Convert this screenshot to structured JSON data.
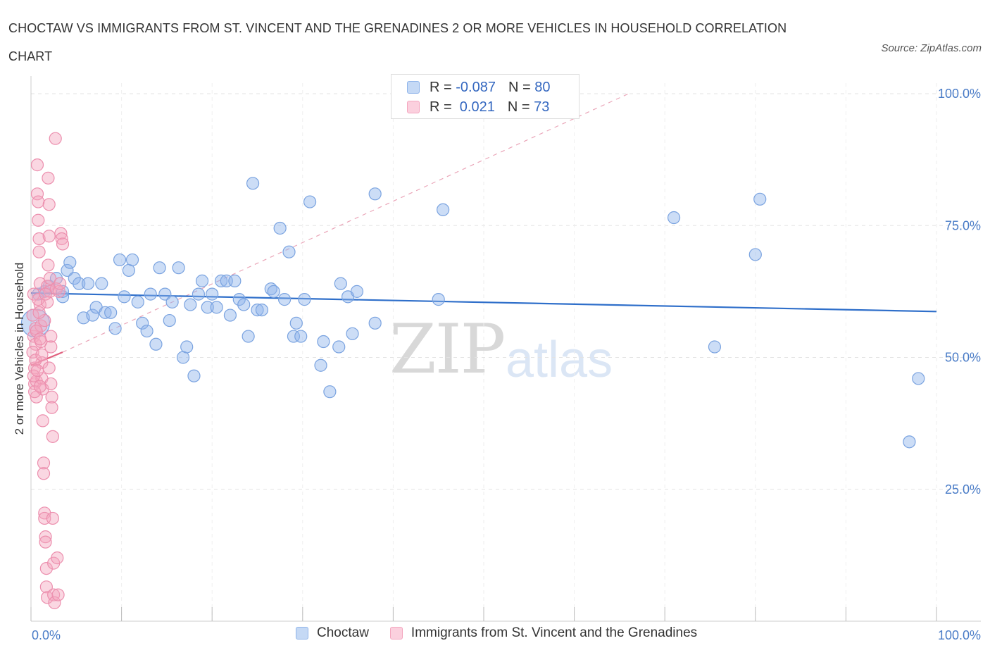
{
  "chart_data": {
    "type": "scatter",
    "title": "CHOCTAW VS IMMIGRANTS FROM ST. VINCENT AND THE GRENADINES 2 OR MORE VEHICLES IN HOUSEHOLD CORRELATION CHART",
    "source": "Source: ZipAtlas.com",
    "ylabel": "2 or more Vehicles in Household",
    "xlim": [
      0,
      100
    ],
    "ylim": [
      0,
      100
    ],
    "x_tick_labels": [
      "0.0%",
      "100.0%"
    ],
    "y_tick_labels": [
      "100.0%",
      "75.0%",
      "50.0%",
      "25.0%"
    ],
    "y_tick_values": [
      100,
      75,
      50,
      25
    ],
    "watermark": [
      "ZIP",
      "atlas"
    ],
    "legend": {
      "rows": [
        {
          "r_label": "R = ",
          "r_value": "-0.087",
          "n_label": "N = ",
          "n_value": "80"
        },
        {
          "r_label": "R = ",
          "r_value": " 0.021",
          "n_label": "N = ",
          "n_value": "73"
        }
      ]
    },
    "series": [
      {
        "name": "Choctaw",
        "color": "#8fb4ea",
        "trend": {
          "x0": 0,
          "y0": 62.2,
          "x1": 100,
          "y1": 58.7,
          "color": "#2f6fca"
        },
        "points": [
          [
            0.5,
            56.5
          ],
          [
            0.8,
            62
          ],
          [
            1.5,
            62.5
          ],
          [
            2,
            63.5
          ],
          [
            2.8,
            65
          ],
          [
            3.5,
            61.5
          ],
          [
            3.5,
            62.5
          ],
          [
            4,
            66.5
          ],
          [
            4.3,
            68
          ],
          [
            4.8,
            65
          ],
          [
            5.3,
            64
          ],
          [
            5.8,
            57.5
          ],
          [
            6.3,
            64
          ],
          [
            6.8,
            58
          ],
          [
            7.2,
            59.5
          ],
          [
            7.8,
            64
          ],
          [
            8.2,
            58.5
          ],
          [
            8.8,
            58.5
          ],
          [
            9.3,
            55.5
          ],
          [
            9.8,
            68.5
          ],
          [
            10.3,
            61.5
          ],
          [
            10.8,
            66.5
          ],
          [
            11.2,
            68.5
          ],
          [
            11.8,
            60.5
          ],
          [
            12.3,
            56.5
          ],
          [
            12.8,
            55
          ],
          [
            13.2,
            62
          ],
          [
            13.8,
            52.5
          ],
          [
            14.2,
            67
          ],
          [
            14.8,
            62
          ],
          [
            15.3,
            57
          ],
          [
            15.6,
            60.5
          ],
          [
            16.3,
            67
          ],
          [
            16.8,
            50
          ],
          [
            17.2,
            52
          ],
          [
            17.6,
            60
          ],
          [
            18,
            46.5
          ],
          [
            18.5,
            62
          ],
          [
            18.9,
            64.5
          ],
          [
            19.5,
            59.5
          ],
          [
            20,
            62
          ],
          [
            20.5,
            59.5
          ],
          [
            21,
            64.5
          ],
          [
            21.6,
            64.5
          ],
          [
            22,
            58
          ],
          [
            22.5,
            64.5
          ],
          [
            23,
            61
          ],
          [
            23.5,
            60
          ],
          [
            24,
            54
          ],
          [
            24.5,
            83
          ],
          [
            25,
            59
          ],
          [
            25.5,
            59
          ],
          [
            26.5,
            63
          ],
          [
            26.8,
            62.5
          ],
          [
            27.5,
            74.5
          ],
          [
            28,
            61
          ],
          [
            28.5,
            70
          ],
          [
            29,
            54
          ],
          [
            29.3,
            56.5
          ],
          [
            29.8,
            54
          ],
          [
            30.2,
            61
          ],
          [
            30.8,
            79.5
          ],
          [
            32,
            48.5
          ],
          [
            32.3,
            53
          ],
          [
            33,
            43.5
          ],
          [
            34,
            52
          ],
          [
            34.2,
            64
          ],
          [
            35,
            61.5
          ],
          [
            35.5,
            54.5
          ],
          [
            36,
            62.5
          ],
          [
            38,
            56.5
          ],
          [
            38,
            81
          ],
          [
            45,
            61
          ],
          [
            45.5,
            78
          ],
          [
            71,
            76.5
          ],
          [
            75.5,
            52
          ],
          [
            80,
            69.5
          ],
          [
            80.5,
            80
          ],
          [
            97,
            34
          ],
          [
            98,
            46
          ]
        ]
      },
      {
        "name": "Immigrants from St. Vincent and the Grenadines",
        "color": "#f4a6bf",
        "trend": {
          "x0": 0,
          "y0": 48.5,
          "x1": 3.5,
          "y1": 51,
          "color": "#e0607e",
          "dashed_to": {
            "x": 66,
            "y": 100
          }
        },
        "points": [
          [
            0.3,
            62
          ],
          [
            0.3,
            54
          ],
          [
            0.4,
            48
          ],
          [
            0.4,
            45
          ],
          [
            0.5,
            55.5
          ],
          [
            0.5,
            52.5
          ],
          [
            0.6,
            45.5
          ],
          [
            0.6,
            42.5
          ],
          [
            0.7,
            86.5
          ],
          [
            0.7,
            81
          ],
          [
            0.8,
            79.5
          ],
          [
            0.8,
            76
          ],
          [
            0.9,
            72.5
          ],
          [
            0.9,
            70
          ],
          [
            1,
            64
          ],
          [
            1,
            60
          ],
          [
            1.1,
            56
          ],
          [
            1.1,
            53
          ],
          [
            1.2,
            49
          ],
          [
            1.2,
            46
          ],
          [
            1.3,
            44
          ],
          [
            1.3,
            38
          ],
          [
            1.4,
            30
          ],
          [
            1.4,
            28
          ],
          [
            1.5,
            20.5
          ],
          [
            1.5,
            19.5
          ],
          [
            1.6,
            16
          ],
          [
            1.6,
            15
          ],
          [
            1.7,
            10
          ],
          [
            1.7,
            6.5
          ],
          [
            1.8,
            4.5
          ],
          [
            1.8,
            63.5
          ],
          [
            1.9,
            67.5
          ],
          [
            1.9,
            84
          ],
          [
            2,
            79
          ],
          [
            2,
            73
          ],
          [
            2.1,
            65
          ],
          [
            2.1,
            62.5
          ],
          [
            2.2,
            54
          ],
          [
            2.2,
            45
          ],
          [
            2.3,
            42.5
          ],
          [
            2.3,
            40.5
          ],
          [
            2.4,
            35
          ],
          [
            2.4,
            19.5
          ],
          [
            2.5,
            11
          ],
          [
            2.5,
            5
          ],
          [
            2.6,
            3.5
          ],
          [
            2.7,
            91.5
          ],
          [
            2.8,
            63
          ],
          [
            2.9,
            12
          ],
          [
            3,
            5
          ],
          [
            3.1,
            62.5
          ],
          [
            3.2,
            64
          ],
          [
            3.3,
            73.5
          ],
          [
            3.4,
            72.5
          ],
          [
            3.5,
            71.5
          ],
          [
            0.2,
            58
          ],
          [
            0.2,
            51
          ],
          [
            0.3,
            46.5
          ],
          [
            0.4,
            43.5
          ],
          [
            0.5,
            49.5
          ],
          [
            0.6,
            55
          ],
          [
            0.8,
            61
          ],
          [
            1,
            53.5
          ],
          [
            1.2,
            50.5
          ],
          [
            1.5,
            57
          ],
          [
            1.8,
            60.5
          ],
          [
            2,
            48
          ],
          [
            2.2,
            52
          ],
          [
            1,
            44.5
          ],
          [
            0.7,
            47.5
          ],
          [
            0.9,
            58.5
          ],
          [
            1.6,
            62
          ]
        ]
      }
    ]
  }
}
